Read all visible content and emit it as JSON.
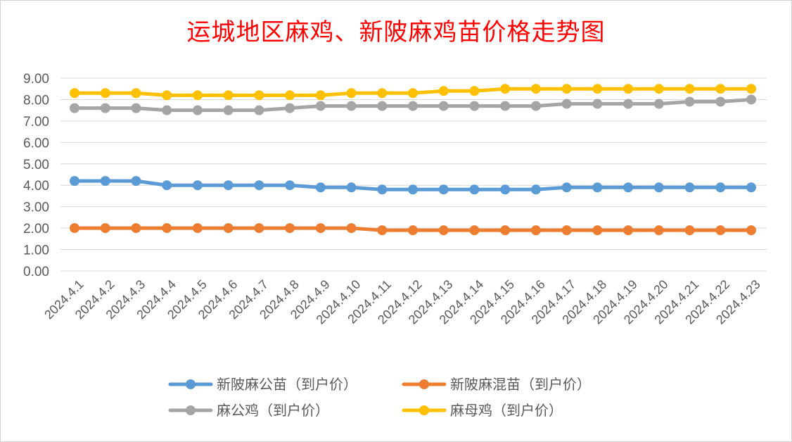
{
  "chart_data": {
    "type": "line",
    "title": "运城地区麻鸡、新陂麻鸡苗价格走势图",
    "xlabel": "",
    "ylabel": "",
    "ylim": [
      0,
      9
    ],
    "ytick_step": 1,
    "ytick_labels": [
      "0.00",
      "1.00",
      "2.00",
      "3.00",
      "4.00",
      "5.00",
      "6.00",
      "7.00",
      "8.00",
      "9.00"
    ],
    "categories": [
      "2024.4.1",
      "2024.4.2",
      "2024.4.3",
      "2024.4.4",
      "2024.4.5",
      "2024.4.6",
      "2024.4.7",
      "2024.4.8",
      "2024.4.9",
      "2024.4.10",
      "2024.4.11",
      "2024.4.12",
      "2024.4.13",
      "2024.4.14",
      "2024.4.15",
      "2024.4.16",
      "2024.4.17",
      "2024.4.18",
      "2024.4.19",
      "2024.4.20",
      "2024.4.21",
      "2024.4.22",
      "2024.4.23"
    ],
    "grid": true,
    "legend_position": "bottom",
    "series": [
      {
        "name": "新陂麻公苗（到户价）",
        "color": "#5b9bd5",
        "values": [
          4.2,
          4.2,
          4.2,
          4.0,
          4.0,
          4.0,
          4.0,
          4.0,
          3.9,
          3.9,
          3.8,
          3.8,
          3.8,
          3.8,
          3.8,
          3.8,
          3.9,
          3.9,
          3.9,
          3.9,
          3.9,
          3.9,
          3.9
        ]
      },
      {
        "name": "新陂麻混苗（到户价）",
        "color": "#ed7d31",
        "values": [
          2.0,
          2.0,
          2.0,
          2.0,
          2.0,
          2.0,
          2.0,
          2.0,
          2.0,
          2.0,
          1.9,
          1.9,
          1.9,
          1.9,
          1.9,
          1.9,
          1.9,
          1.9,
          1.9,
          1.9,
          1.9,
          1.9,
          1.9
        ]
      },
      {
        "name": "麻公鸡（到户价）",
        "color": "#a5a5a5",
        "values": [
          7.6,
          7.6,
          7.6,
          7.5,
          7.5,
          7.5,
          7.5,
          7.6,
          7.7,
          7.7,
          7.7,
          7.7,
          7.7,
          7.7,
          7.7,
          7.7,
          7.8,
          7.8,
          7.8,
          7.8,
          7.9,
          7.9,
          8.0
        ]
      },
      {
        "name": "麻母鸡（到户价）",
        "color": "#ffc000",
        "values": [
          8.3,
          8.3,
          8.3,
          8.2,
          8.2,
          8.2,
          8.2,
          8.2,
          8.2,
          8.3,
          8.3,
          8.3,
          8.4,
          8.4,
          8.5,
          8.5,
          8.5,
          8.5,
          8.5,
          8.5,
          8.5,
          8.5,
          8.5
        ]
      }
    ]
  }
}
